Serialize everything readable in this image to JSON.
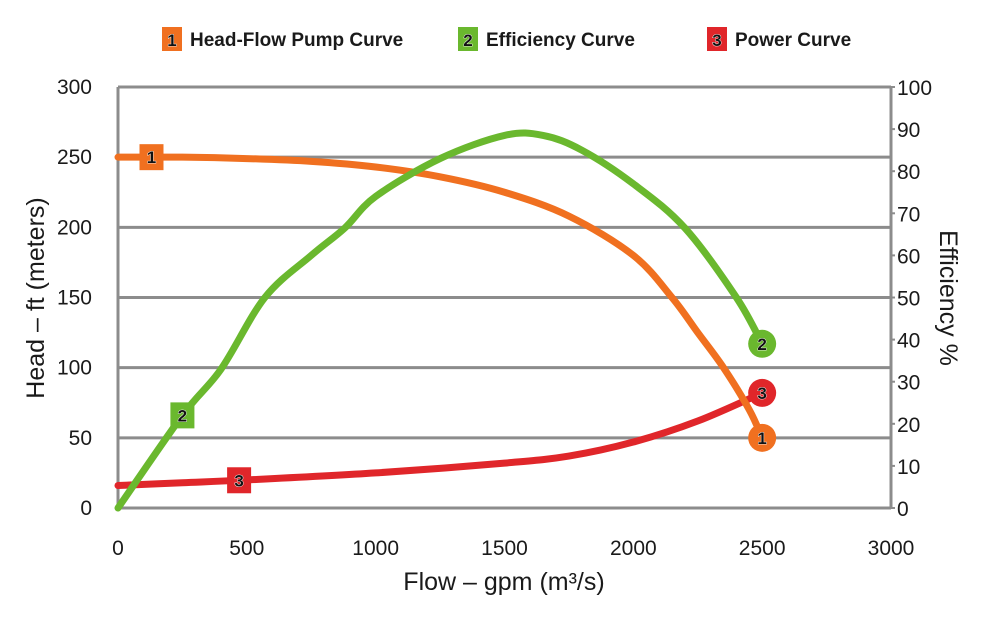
{
  "chart_data": {
    "type": "line",
    "title": "",
    "xlabel": "Flow – gpm (m³/s)",
    "ylabel": "Head – ft (meters)",
    "y2label": "Efficiency %",
    "xlim": [
      0,
      3000
    ],
    "ylim": [
      0,
      300
    ],
    "y2lim": [
      0,
      100
    ],
    "xticks": [
      "0",
      "500",
      "1000",
      "1500",
      "2000",
      "2500",
      "3000"
    ],
    "yticks": [
      "0",
      "50",
      "100",
      "150",
      "200",
      "250",
      "300"
    ],
    "y2ticks": [
      "0",
      "10",
      "20",
      "30",
      "40",
      "50",
      "60",
      "70",
      "80",
      "90",
      "100"
    ],
    "grid": "horizontal",
    "legend_position": "top-center",
    "series": [
      {
        "name": "Head-Flow Pump Curve",
        "badge": "1",
        "color": "#f07020",
        "axis": "left",
        "x": [
          0,
          250,
          500,
          750,
          1000,
          1250,
          1500,
          1750,
          2000,
          2150,
          2250,
          2350,
          2450,
          2500
        ],
        "values": [
          250,
          250,
          249,
          247,
          243,
          236,
          225,
          208,
          180,
          150,
          125,
          100,
          70,
          50
        ]
      },
      {
        "name": "Efficiency Curve",
        "badge": "2",
        "color": "#6ab82e",
        "axis": "right",
        "x": [
          0,
          250,
          400,
          570,
          750,
          880,
          1000,
          1250,
          1500,
          1650,
          1800,
          2000,
          2200,
          2400,
          2500
        ],
        "values": [
          0,
          22,
          33,
          50,
          60,
          66.5,
          74,
          83,
          88.5,
          88.5,
          85,
          77,
          66.5,
          50,
          39
        ]
      },
      {
        "name": "Power Curve",
        "badge": "3",
        "color": "#e0262a",
        "axis": "left",
        "x": [
          0,
          250,
          500,
          1000,
          1500,
          1750,
          2000,
          2250,
          2500
        ],
        "values": [
          16,
          18,
          20,
          25,
          32,
          37,
          47,
          62,
          82
        ]
      }
    ],
    "annotations": [
      {
        "series": 0,
        "label": "1",
        "x": 130,
        "shape": "square"
      },
      {
        "series": 0,
        "label": "1",
        "x": 2500,
        "shape": "circle"
      },
      {
        "series": 1,
        "label": "2",
        "x": 250,
        "shape": "square"
      },
      {
        "series": 1,
        "label": "2",
        "x": 2500,
        "shape": "circle"
      },
      {
        "series": 2,
        "label": "3",
        "x": 470,
        "shape": "square"
      },
      {
        "series": 2,
        "label": "3",
        "x": 2500,
        "shape": "circle"
      }
    ]
  }
}
